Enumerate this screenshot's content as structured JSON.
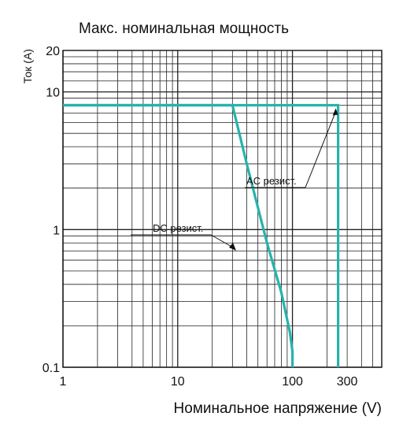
{
  "chart_data": {
    "type": "line",
    "title": "Макс. номинальная мощность",
    "xlabel": "Номинальное напряжение (V)",
    "ylabel": "Ток (A)",
    "x_scale": "log",
    "y_scale": "log",
    "xlim": [
      1,
      600
    ],
    "ylim": [
      0.1,
      20
    ],
    "grid": true,
    "x_ticks": [
      {
        "value": 1,
        "label": "1"
      },
      {
        "value": 10,
        "label": "10"
      },
      {
        "value": 100,
        "label": "100"
      },
      {
        "value": 300,
        "label": "300"
      }
    ],
    "y_ticks": [
      {
        "value": 0.1,
        "label": "0.1"
      },
      {
        "value": 1,
        "label": "1"
      },
      {
        "value": 10,
        "label": "10"
      },
      {
        "value": 20,
        "label": "20"
      }
    ],
    "line_color": "#26b3ab",
    "series": [
      {
        "name": "AC резист.",
        "x": [
          1,
          250,
          250
        ],
        "y": [
          8,
          8,
          0.1
        ]
      },
      {
        "name": "DC резист.",
        "x": [
          1,
          30,
          40,
          60,
          80,
          95,
          100,
          100
        ],
        "y": [
          8,
          8,
          3.0,
          0.8,
          0.35,
          0.18,
          0.13,
          0.1
        ]
      }
    ]
  }
}
